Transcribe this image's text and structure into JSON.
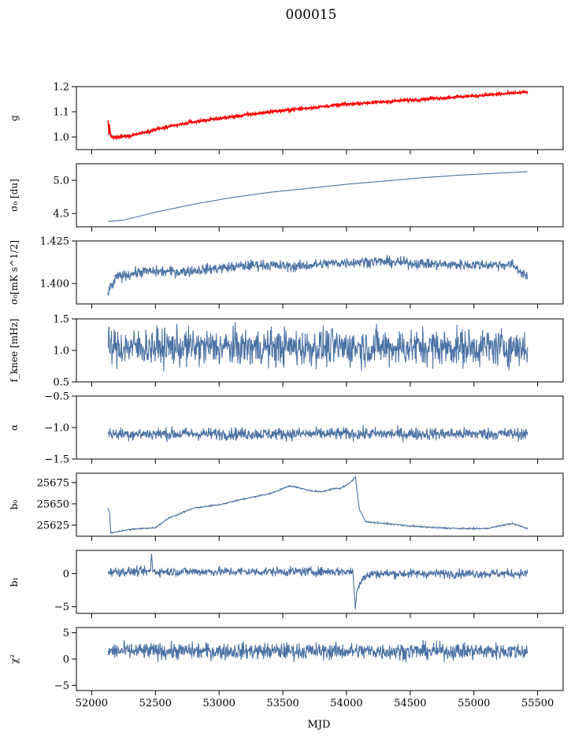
{
  "figure_title": "000015",
  "xlabel": "MJD",
  "colors": {
    "series": "#4c72a4",
    "secondary": "#ff0000",
    "axis": "#000000"
  },
  "chart_data": [
    {
      "id": "g",
      "type": "line",
      "ylabel": "g",
      "ylim": [
        0.95,
        1.2
      ],
      "yticks": [
        1.0,
        1.1,
        1.2
      ],
      "ytick_labels": [
        "1.0",
        "1.1",
        "1.2"
      ],
      "series": [
        {
          "color": "#4c72a4",
          "kind": "smooth",
          "x": [
            52130,
            52200,
            52300,
            52500,
            52800,
            53100,
            53400,
            53700,
            54000,
            54300,
            54600,
            54900,
            55200,
            55420
          ],
          "y": [
            1.01,
            1.0,
            1.005,
            1.03,
            1.06,
            1.08,
            1.1,
            1.115,
            1.13,
            1.14,
            1.15,
            1.16,
            1.17,
            1.178
          ]
        },
        {
          "color": "#ff0000",
          "kind": "noisy",
          "noise": 0.003,
          "x": [
            52130,
            52135,
            52140,
            52150,
            52200,
            52300,
            52500,
            52800,
            53100,
            53400,
            53700,
            54000,
            54300,
            54600,
            54900,
            55200,
            55420
          ],
          "y": [
            1.065,
            1.01,
            1.05,
            1.0,
            0.998,
            1.005,
            1.03,
            1.06,
            1.08,
            1.1,
            1.115,
            1.13,
            1.14,
            1.15,
            1.16,
            1.17,
            1.178
          ]
        }
      ]
    },
    {
      "id": "sigma0-du",
      "type": "line",
      "ylabel": "σ₀ [du]",
      "ylim": [
        4.3,
        5.25
      ],
      "yticks": [
        4.5,
        5.0
      ],
      "ytick_labels": [
        "4.5",
        "5.0"
      ],
      "series": [
        {
          "color": "#4c72a4",
          "kind": "smooth",
          "x": [
            52130,
            52250,
            52500,
            52800,
            53100,
            53400,
            53700,
            54000,
            54300,
            54600,
            54900,
            55200,
            55420
          ],
          "y": [
            4.38,
            4.4,
            4.52,
            4.64,
            4.74,
            4.82,
            4.88,
            4.94,
            4.99,
            5.04,
            5.08,
            5.11,
            5.13
          ]
        }
      ]
    },
    {
      "id": "sigma0-mks",
      "type": "line",
      "ylabel": "σ₀[mK s^1/2]",
      "ylim": [
        1.388,
        1.425
      ],
      "yticks": [
        1.4,
        1.425
      ],
      "ytick_labels": [
        "1.400",
        "1.425"
      ],
      "series": [
        {
          "color": "#4c72a4",
          "kind": "noisy",
          "noise": 0.0016,
          "x": [
            52130,
            52200,
            52400,
            52700,
            53000,
            53300,
            53600,
            53900,
            54200,
            54500,
            54800,
            55100,
            55300,
            55420
          ],
          "y": [
            1.395,
            1.404,
            1.407,
            1.407,
            1.409,
            1.411,
            1.41,
            1.412,
            1.413,
            1.412,
            1.411,
            1.411,
            1.411,
            1.404
          ]
        }
      ]
    },
    {
      "id": "fknee",
      "type": "line",
      "ylabel": "f_knee [mHz]",
      "ylim": [
        0.5,
        1.5
      ],
      "yticks": [
        0.5,
        1.0,
        1.5
      ],
      "ytick_labels": [
        "0.5",
        "1.0",
        "1.5"
      ],
      "series": [
        {
          "color": "#4c72a4",
          "kind": "noisy",
          "noise": 0.15,
          "x": [
            52130,
            55420
          ],
          "y": [
            1.05,
            1.05
          ]
        }
      ]
    },
    {
      "id": "alpha",
      "type": "line",
      "ylabel": "α",
      "ylim": [
        -1.5,
        -0.5
      ],
      "yticks": [
        -1.5,
        -1.0,
        -0.5
      ],
      "ytick_labels": [
        "−1.5",
        "−1.0",
        "−0.5"
      ],
      "series": [
        {
          "color": "#4c72a4",
          "kind": "noisy",
          "noise": 0.05,
          "x": [
            52130,
            55420
          ],
          "y": [
            -1.1,
            -1.1
          ]
        }
      ]
    },
    {
      "id": "b0",
      "type": "line",
      "ylabel": "b₀",
      "ylim": [
        25612,
        25686
      ],
      "yticks": [
        25625,
        25650,
        25675
      ],
      "ytick_labels": [
        "25625",
        "25650",
        "25675"
      ],
      "series": [
        {
          "color": "#4c72a4",
          "kind": "noisy",
          "noise": 0.4,
          "x": [
            52130,
            52140,
            52150,
            52300,
            52500,
            52600,
            52700,
            52800,
            53000,
            53200,
            53400,
            53500,
            53550,
            53600,
            53700,
            53800,
            53900,
            53950,
            54000,
            54050,
            54070,
            54100,
            54150,
            54300,
            54500,
            54700,
            54900,
            55100,
            55300,
            55420
          ],
          "y": [
            25644,
            25640,
            25616,
            25620,
            25622,
            25633,
            25639,
            25645,
            25649,
            25656,
            25662,
            25668,
            25671,
            25670,
            25666,
            25664,
            25668,
            25668,
            25672,
            25678,
            25682,
            25644,
            25629,
            25627,
            25624,
            25622,
            25621,
            25621,
            25627,
            25621
          ]
        }
      ]
    },
    {
      "id": "b1",
      "type": "line",
      "ylabel": "b₁",
      "ylim": [
        -6,
        3.5
      ],
      "yticks": [
        -5,
        0
      ],
      "ytick_labels": [
        "−5",
        "0"
      ],
      "series": [
        {
          "color": "#4c72a4",
          "kind": "noisy",
          "noise": 0.35,
          "x": [
            52130,
            52460,
            52470,
            52480,
            52490,
            54050,
            54070,
            54080,
            54120,
            54200,
            54300,
            55420
          ],
          "y": [
            0.3,
            0.3,
            3.0,
            0.3,
            0.3,
            0.3,
            -5.3,
            -2.5,
            -0.8,
            0,
            0,
            0
          ]
        }
      ]
    },
    {
      "id": "chi2",
      "type": "line",
      "ylabel": "χ²",
      "ylim": [
        -6,
        6
      ],
      "yticks": [
        -5,
        0,
        5
      ],
      "ytick_labels": [
        "−5",
        "0",
        "5"
      ],
      "series": [
        {
          "color": "#4c72a4",
          "kind": "noisy",
          "noise": 0.8,
          "x": [
            52130,
            55420
          ],
          "y": [
            1.5,
            1.5
          ]
        }
      ]
    }
  ],
  "x_axis": {
    "xlim": [
      51880,
      55700
    ],
    "ticks": [
      52000,
      52500,
      53000,
      53500,
      54000,
      54500,
      55000,
      55500
    ],
    "tick_labels": [
      "52000",
      "52500",
      "53000",
      "53500",
      "54000",
      "54500",
      "55000",
      "55500"
    ]
  }
}
